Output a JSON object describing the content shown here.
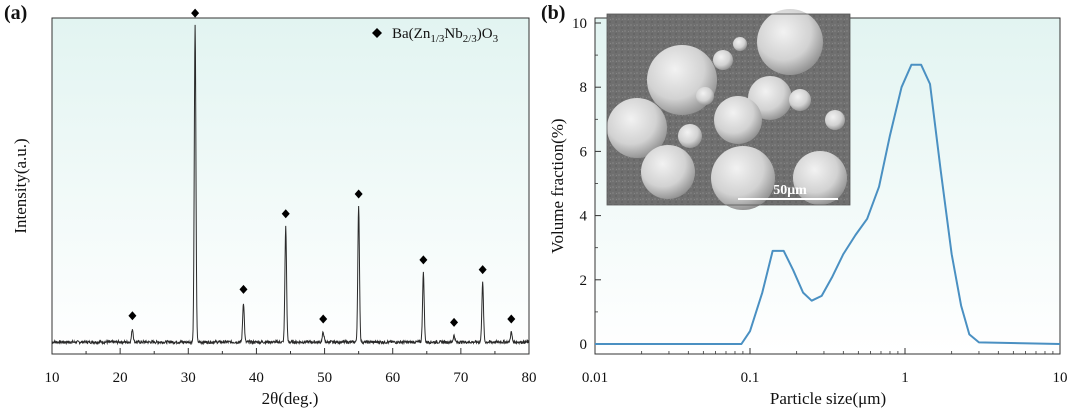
{
  "panels": {
    "a": {
      "label": "(a)"
    },
    "b": {
      "label": "(b)"
    }
  },
  "colors": {
    "xrd_line": "#2a2a2a",
    "psd_line": "#4a90c2",
    "background_top": "#e2f4f1",
    "background_bottom": "#ffffff",
    "marker": "#000000"
  },
  "inset": {
    "description_icon": "sem-micrograph",
    "scale_bar_label": "50μm"
  },
  "chart_data": [
    {
      "type": "line",
      "panel": "a",
      "title": "",
      "xlabel": "2θ(deg.)",
      "ylabel": "Intensity(a.u.)",
      "xlim": [
        10,
        80
      ],
      "ylim": [
        0,
        100
      ],
      "xticks": [
        10,
        20,
        30,
        40,
        50,
        60,
        70,
        80
      ],
      "x_tick_labels": [
        "10",
        "20",
        "30",
        "40",
        "50",
        "60",
        "70",
        "80"
      ],
      "y_tick_labels": [],
      "legend": {
        "marker": "diamond",
        "text_parts": [
          "Ba(Zn",
          "1/3",
          "Nb",
          "2/3",
          ")O",
          "3"
        ],
        "placement": "top-right"
      },
      "baseline": 1.5,
      "peaks": [
        {
          "x": 21.8,
          "y": 4
        },
        {
          "x": 31.0,
          "y": 96
        },
        {
          "x": 38.1,
          "y": 12
        },
        {
          "x": 44.3,
          "y": 35
        },
        {
          "x": 49.8,
          "y": 3
        },
        {
          "x": 55.0,
          "y": 41
        },
        {
          "x": 64.5,
          "y": 21
        },
        {
          "x": 69.0,
          "y": 2
        },
        {
          "x": 73.2,
          "y": 18
        },
        {
          "x": 77.4,
          "y": 3
        }
      ],
      "marker_offset": 4,
      "grid": false
    },
    {
      "type": "line",
      "panel": "b",
      "title": "",
      "xlabel": "Particle size(μm)",
      "ylabel": "Volume fraction(%)",
      "xscale": "log",
      "xlim": [
        0.01,
        10
      ],
      "ylim": [
        0,
        10
      ],
      "xticks": [
        0.01,
        0.1,
        1,
        10
      ],
      "x_tick_labels": [
        "0.01",
        "0.1",
        "1",
        "10"
      ],
      "yticks": [
        0,
        2,
        4,
        6,
        8,
        10
      ],
      "y_tick_labels": [
        "0",
        "2",
        "4",
        "6",
        "8",
        "10"
      ],
      "series": [
        {
          "x": [
            0.01,
            0.088,
            0.1,
            0.12,
            0.14,
            0.165,
            0.19,
            0.22,
            0.25,
            0.29,
            0.34,
            0.4,
            0.48,
            0.57,
            0.68,
            0.8,
            0.95,
            1.1,
            1.27,
            1.45,
            1.7,
            2.0,
            2.3,
            2.6,
            3.0,
            10
          ],
          "y": [
            0,
            0,
            0.4,
            1.6,
            2.9,
            2.9,
            2.3,
            1.6,
            1.35,
            1.5,
            2.1,
            2.8,
            3.4,
            3.9,
            4.9,
            6.5,
            8.0,
            8.7,
            8.7,
            8.1,
            5.4,
            2.8,
            1.2,
            0.3,
            0.05,
            0
          ]
        }
      ],
      "grid": false
    }
  ]
}
